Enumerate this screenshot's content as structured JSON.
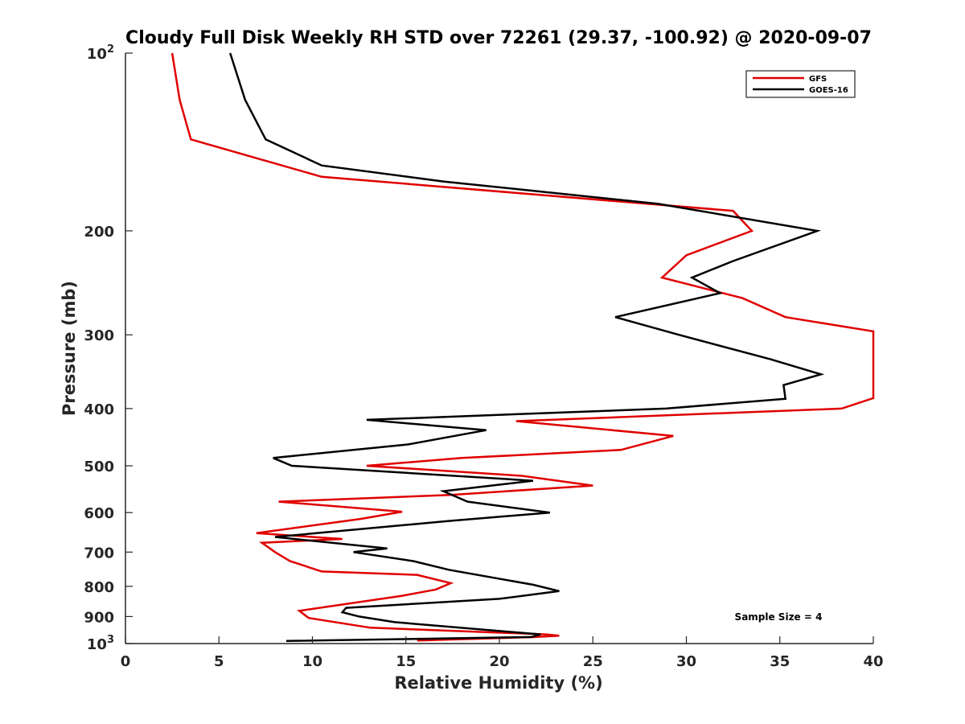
{
  "chart_data": {
    "type": "line",
    "title": "Cloudy Full Disk Weekly RH STD over 72261 (29.37, -100.92) @ 2020-09-07",
    "xlabel": "Relative Humidity (%)",
    "ylabel": "Pressure (mb)",
    "xlim": [
      0,
      40
    ],
    "ylim": [
      100,
      1000
    ],
    "yscale": "log",
    "y_reversed": true,
    "grid": false,
    "legend_position": "top-right",
    "x_ticks": [
      "0",
      "5",
      "10",
      "15",
      "20",
      "25",
      "30",
      "35",
      "40"
    ],
    "y_ticks": [
      {
        "value": 100,
        "base": "10",
        "exp": "2"
      },
      {
        "value": 200,
        "label": "200"
      },
      {
        "value": 300,
        "label": "300"
      },
      {
        "value": 400,
        "label": "400"
      },
      {
        "value": 500,
        "label": "500"
      },
      {
        "value": 600,
        "label": "600"
      },
      {
        "value": 700,
        "label": "700"
      },
      {
        "value": 800,
        "label": "800"
      },
      {
        "value": 900,
        "label": "900"
      },
      {
        "value": 1000,
        "base": "10",
        "exp": "3"
      }
    ],
    "series": [
      {
        "name": "GFS",
        "color": "#e00000",
        "points": [
          [
            2.5,
            100
          ],
          [
            2.9,
            120
          ],
          [
            3.5,
            140
          ],
          [
            10.5,
            162
          ],
          [
            32.5,
            185
          ],
          [
            33.5,
            200
          ],
          [
            30.0,
            220
          ],
          [
            28.7,
            240
          ],
          [
            33.0,
            260
          ],
          [
            35.3,
            280
          ],
          [
            40.0,
            296
          ],
          [
            40.0,
            384
          ],
          [
            38.3,
            400
          ],
          [
            20.9,
            420
          ],
          [
            29.3,
            445
          ],
          [
            26.5,
            470
          ],
          [
            18.0,
            485
          ],
          [
            12.9,
            500
          ],
          [
            21.2,
            520
          ],
          [
            25.0,
            540
          ],
          [
            17.4,
            560
          ],
          [
            8.2,
            575
          ],
          [
            14.8,
            598
          ],
          [
            12.6,
            615
          ],
          [
            7.0,
            650
          ],
          [
            11.6,
            665
          ],
          [
            7.3,
            675
          ],
          [
            8.0,
            700
          ],
          [
            8.8,
            725
          ],
          [
            10.5,
            755
          ],
          [
            15.6,
            765
          ],
          [
            17.4,
            790
          ],
          [
            16.6,
            810
          ],
          [
            14.8,
            830
          ],
          [
            9.3,
            880
          ],
          [
            9.8,
            905
          ],
          [
            13.1,
            940
          ],
          [
            22.5,
            965
          ],
          [
            23.2,
            970
          ],
          [
            21.9,
            975
          ],
          [
            15.6,
            988
          ]
        ]
      },
      {
        "name": "GOES-16",
        "color": "#000000",
        "points": [
          [
            5.6,
            100
          ],
          [
            6.4,
            120
          ],
          [
            7.5,
            140
          ],
          [
            10.5,
            155
          ],
          [
            17.0,
            165
          ],
          [
            28.5,
            180
          ],
          [
            37.0,
            200
          ],
          [
            32.5,
            225
          ],
          [
            30.3,
            240
          ],
          [
            31.8,
            255
          ],
          [
            26.2,
            280
          ],
          [
            29.6,
            300
          ],
          [
            34.5,
            330
          ],
          [
            37.2,
            350
          ],
          [
            35.2,
            365
          ],
          [
            35.3,
            385
          ],
          [
            28.9,
            400
          ],
          [
            12.9,
            418
          ],
          [
            19.3,
            435
          ],
          [
            15.1,
            460
          ],
          [
            7.9,
            485
          ],
          [
            8.9,
            500
          ],
          [
            21.8,
            530
          ],
          [
            17.0,
            552
          ],
          [
            18.3,
            575
          ],
          [
            22.7,
            600
          ],
          [
            17.3,
            620
          ],
          [
            8.0,
            660
          ],
          [
            14.0,
            690
          ],
          [
            12.2,
            700
          ],
          [
            15.4,
            725
          ],
          [
            17.3,
            750
          ],
          [
            21.8,
            795
          ],
          [
            23.2,
            815
          ],
          [
            20.0,
            840
          ],
          [
            11.8,
            870
          ],
          [
            11.6,
            885
          ],
          [
            12.5,
            900
          ],
          [
            14.4,
            920
          ],
          [
            22.2,
            965
          ],
          [
            21.7,
            975
          ],
          [
            8.6,
            990
          ]
        ]
      }
    ],
    "annotations": [
      "Sample Size = 4"
    ]
  }
}
